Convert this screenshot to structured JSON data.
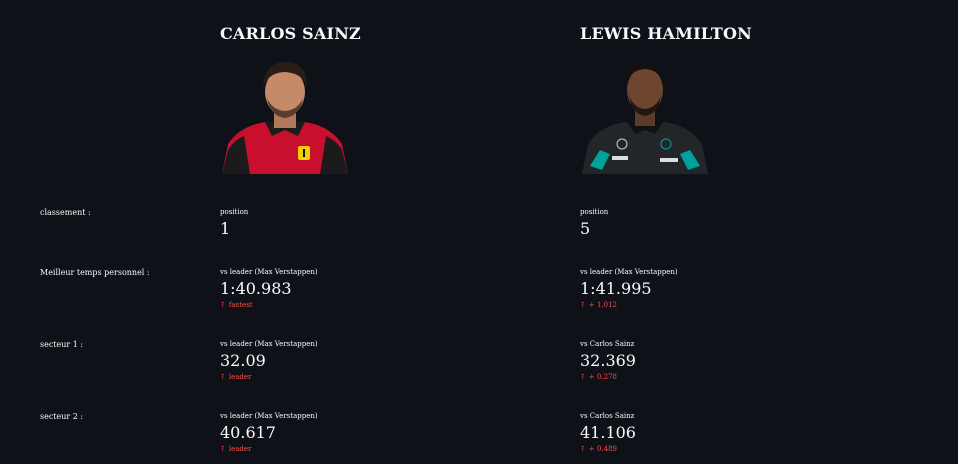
{
  "drivers": [
    {
      "name": "CARLOS SAINZ",
      "team_color": "#d0112b"
    },
    {
      "name": "LEWIS HAMILTON",
      "team_color": "#1a1d1f"
    }
  ],
  "rows": {
    "classement": {
      "label": "classement :",
      "sainz": {
        "caption": "position",
        "value": "1",
        "delta": ""
      },
      "hamilton": {
        "caption": "position",
        "value": "5",
        "delta": ""
      }
    },
    "best": {
      "label": "Meilleur temps personnel :",
      "sainz": {
        "caption": "vs leader (Max Verstappen)",
        "value": "1:40.983",
        "delta": "fastest"
      },
      "hamilton": {
        "caption": "vs leader (Max Verstappen)",
        "value": "1:41.995",
        "delta": "+ 1.012"
      }
    },
    "s1": {
      "label": "secteur 1 :",
      "sainz": {
        "caption": "vs leader (Max Verstappen)",
        "value": "32.09",
        "delta": "leader"
      },
      "hamilton": {
        "caption": "vs Carlos Sainz",
        "value": "32.369",
        "delta": "+ 0.278"
      }
    },
    "s2": {
      "label": "secteur 2 :",
      "sainz": {
        "caption": "vs leader (Max Verstappen)",
        "value": "40.617",
        "delta": "leader"
      },
      "hamilton": {
        "caption": "vs Carlos Sainz",
        "value": "41.106",
        "delta": "+ 0.489"
      }
    }
  },
  "colors": {
    "background": "#0e1117",
    "text": "#fafafa",
    "delta_up": "#ff4b4b"
  },
  "icons": {
    "delta": "arrow-up-icon",
    "arrow_glyph": "↑"
  }
}
